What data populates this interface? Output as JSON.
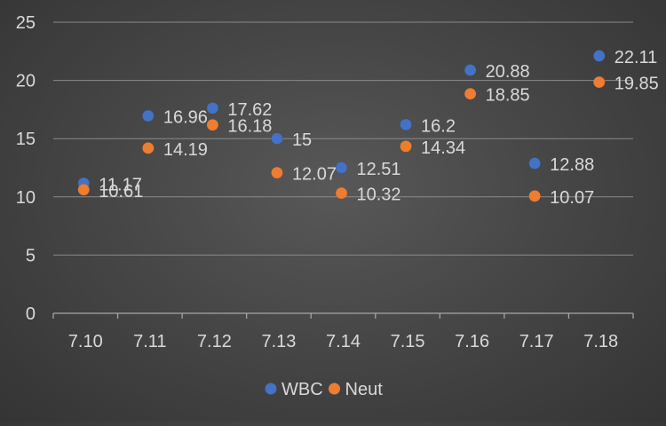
{
  "chart_data": {
    "type": "scatter",
    "title": "",
    "xlabel": "",
    "ylabel": "",
    "categories": [
      "7.10",
      "7.11",
      "7.12",
      "7.13",
      "7.14",
      "7.15",
      "7.16",
      "7.17",
      "7.18"
    ],
    "ylim": [
      0,
      25
    ],
    "yticks": [
      0,
      5,
      10,
      15,
      20,
      25
    ],
    "ytick_labels": [
      "0",
      "5",
      "10",
      "15",
      "20",
      "25"
    ],
    "grid": true,
    "legend_position": "bottom",
    "data_labels": true,
    "series": [
      {
        "name": "WBC",
        "color": "#4472C4",
        "values": [
          11.17,
          16.96,
          17.62,
          15,
          12.51,
          16.2,
          20.88,
          12.88,
          22.11
        ],
        "labels": [
          "11.17",
          "16.96",
          "17.62",
          "15",
          "12.51",
          "16.2",
          "20.88",
          "12.88",
          "22.11"
        ]
      },
      {
        "name": "Neut",
        "color": "#ED7D31",
        "values": [
          10.61,
          14.19,
          16.18,
          12.07,
          10.32,
          14.34,
          18.85,
          10.07,
          19.85
        ],
        "labels": [
          "10.61",
          "14.19",
          "16.18",
          "12.07",
          "10.32",
          "14.34",
          "18.85",
          "10.07",
          "19.85"
        ]
      }
    ]
  }
}
